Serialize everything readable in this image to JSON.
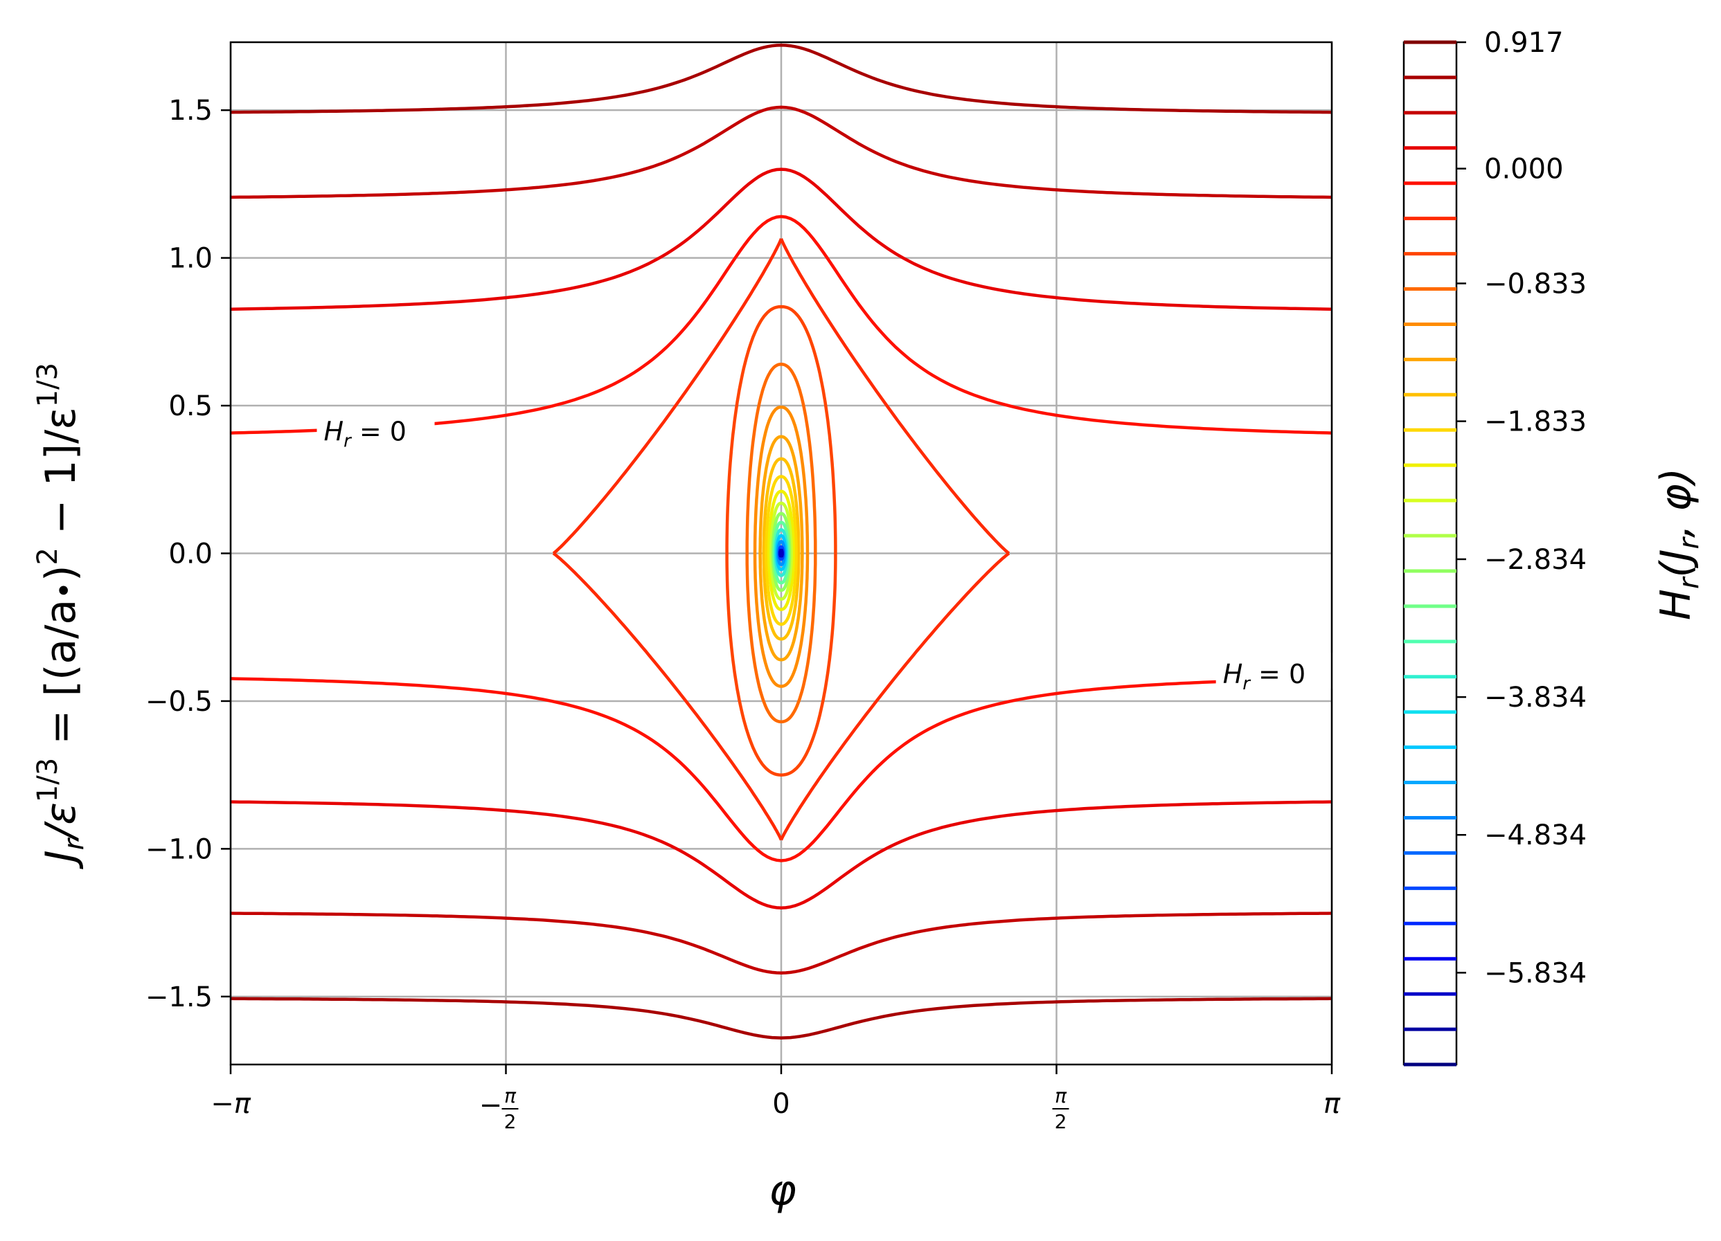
{
  "chart_data": {
    "type": "contour",
    "title": "",
    "xlabel": "φ",
    "ylabel_parts": {
      "j": "J",
      "r": "r",
      "slash_eps": "/ε",
      "exp13": "1/3",
      "eq": " = [(a/a",
      "bullet": "•",
      "close": ")",
      "sq": "2",
      "minus1": " − 1]/ε",
      "exp13b": "1/3"
    },
    "xlim": [
      -3.14159,
      3.14159
    ],
    "ylim": [
      -1.73,
      1.73
    ],
    "grid": true,
    "x_ticks": [
      {
        "value": -3.14159,
        "label": "−π"
      },
      {
        "value": -1.5708,
        "label": "−π/2"
      },
      {
        "value": 0,
        "label": "0"
      },
      {
        "value": 1.5708,
        "label": "π/2"
      },
      {
        "value": 3.14159,
        "label": "π"
      }
    ],
    "x_tick_parts": {
      "neg_pi": "−π",
      "neg": "−",
      "pi": "π",
      "two": "2",
      "zero": "0"
    },
    "y_ticks": [
      {
        "value": -1.5,
        "label": "−1.5"
      },
      {
        "value": -1.0,
        "label": "−1.0"
      },
      {
        "value": -0.5,
        "label": "−0.5"
      },
      {
        "value": 0.0,
        "label": "0.0"
      },
      {
        "value": 0.5,
        "label": "0.5"
      },
      {
        "value": 1.0,
        "label": "1.0"
      },
      {
        "value": 1.5,
        "label": "1.5"
      }
    ],
    "contour_levels": {
      "open_upper": [
        {
          "y_edge": 1.486,
          "y_peak": 1.72,
          "color": "#a80000"
        },
        {
          "y_edge": 1.196,
          "y_peak": 1.51,
          "color": "#c40000"
        },
        {
          "y_edge": 0.812,
          "y_peak": 1.3,
          "color": "#e60000"
        },
        {
          "y_edge": 0.385,
          "y_peak": 1.14,
          "color": "#ff1000",
          "label": true
        }
      ],
      "open_lower": [
        {
          "y_edge": -1.503,
          "y_dip": -1.64,
          "color": "#a80000"
        },
        {
          "y_edge": -1.212,
          "y_dip": -1.42,
          "color": "#c40000"
        },
        {
          "y_edge": -0.83,
          "y_dip": -1.2,
          "color": "#e60000"
        },
        {
          "y_edge": -0.405,
          "y_dip": -1.04,
          "color": "#ff1000",
          "label": true
        }
      ],
      "separatrix": {
        "y_top": 1.065,
        "y_bottom": -0.97,
        "x_halfwidth": 1.3,
        "color": "#ff2a00"
      },
      "closed": [
        {
          "y_top": 0.835,
          "y_bottom": -0.75,
          "x_halfwidth": 0.31,
          "color": "#ff4500"
        },
        {
          "y_top": 0.64,
          "y_bottom": -0.57,
          "x_halfwidth": 0.195,
          "color": "#ff6a00"
        },
        {
          "y_top": 0.495,
          "y_bottom": -0.45,
          "x_halfwidth": 0.15,
          "color": "#ff8c00"
        },
        {
          "y_top": 0.395,
          "y_bottom": -0.36,
          "x_halfwidth": 0.12,
          "color": "#ffa500"
        },
        {
          "y_top": 0.32,
          "y_bottom": -0.29,
          "x_halfwidth": 0.1,
          "color": "#ffc000"
        },
        {
          "y_top": 0.26,
          "y_bottom": -0.24,
          "x_halfwidth": 0.085,
          "color": "#ffd800"
        },
        {
          "y_top": 0.21,
          "y_bottom": -0.19,
          "x_halfwidth": 0.07,
          "color": "#f0f000"
        },
        {
          "y_top": 0.17,
          "y_bottom": -0.155,
          "x_halfwidth": 0.058,
          "color": "#c8ff30"
        },
        {
          "y_top": 0.135,
          "y_bottom": -0.125,
          "x_halfwidth": 0.048,
          "color": "#90ff60"
        },
        {
          "y_top": 0.105,
          "y_bottom": -0.1,
          "x_halfwidth": 0.04,
          "color": "#60ffa0"
        },
        {
          "y_top": 0.08,
          "y_bottom": -0.075,
          "x_halfwidth": 0.032,
          "color": "#30e8d8"
        },
        {
          "y_top": 0.06,
          "y_bottom": -0.055,
          "x_halfwidth": 0.025,
          "color": "#00c8ff"
        },
        {
          "y_top": 0.04,
          "y_bottom": -0.038,
          "x_halfwidth": 0.018,
          "color": "#0090ff"
        },
        {
          "y_top": 0.022,
          "y_bottom": -0.02,
          "x_halfwidth": 0.011,
          "color": "#0040ff"
        },
        {
          "y_top": 0.01,
          "y_bottom": -0.009,
          "x_halfwidth": 0.006,
          "color": "#0000c0"
        }
      ]
    },
    "contour_labels": [
      {
        "text_h": "H",
        "text_r": "r",
        "text_eq": " = 0",
        "x": -2.61,
        "y": 0.4
      },
      {
        "text_h": "H",
        "text_r": "r",
        "text_eq": " = 0",
        "x": 2.52,
        "y": -0.42
      }
    ],
    "colorbar": {
      "label_h": "H",
      "label_r": "r",
      "label_rest": "(J",
      "label_r2": "r",
      "label_end": ", φ)",
      "vmin": -6.5,
      "vmax": 0.917,
      "ticks": [
        {
          "value": 0.917,
          "label": "0.917"
        },
        {
          "value": 0.0,
          "label": "0.000"
        },
        {
          "value": -0.833,
          "label": "−0.833"
        },
        {
          "value": -1.833,
          "label": "−1.833"
        },
        {
          "value": -2.834,
          "label": "−2.834"
        },
        {
          "value": -3.834,
          "label": "−3.834"
        },
        {
          "value": -4.834,
          "label": "−4.834"
        },
        {
          "value": -5.834,
          "label": "−5.834"
        }
      ],
      "line_colors": [
        "#800000",
        "#a80000",
        "#c40000",
        "#e60000",
        "#ff1000",
        "#ff2a00",
        "#ff4500",
        "#ff6a00",
        "#ff8c00",
        "#ffa500",
        "#ffc000",
        "#ffd800",
        "#f0f000",
        "#d8ff20",
        "#b0ff48",
        "#90ff60",
        "#70ff88",
        "#50ffb0",
        "#30f0d0",
        "#10e0f0",
        "#00c8ff",
        "#00a8ff",
        "#0088ff",
        "#0068ff",
        "#0048ff",
        "#0028ff",
        "#0000f0",
        "#0000c8",
        "#0000a0",
        "#000080"
      ]
    }
  }
}
